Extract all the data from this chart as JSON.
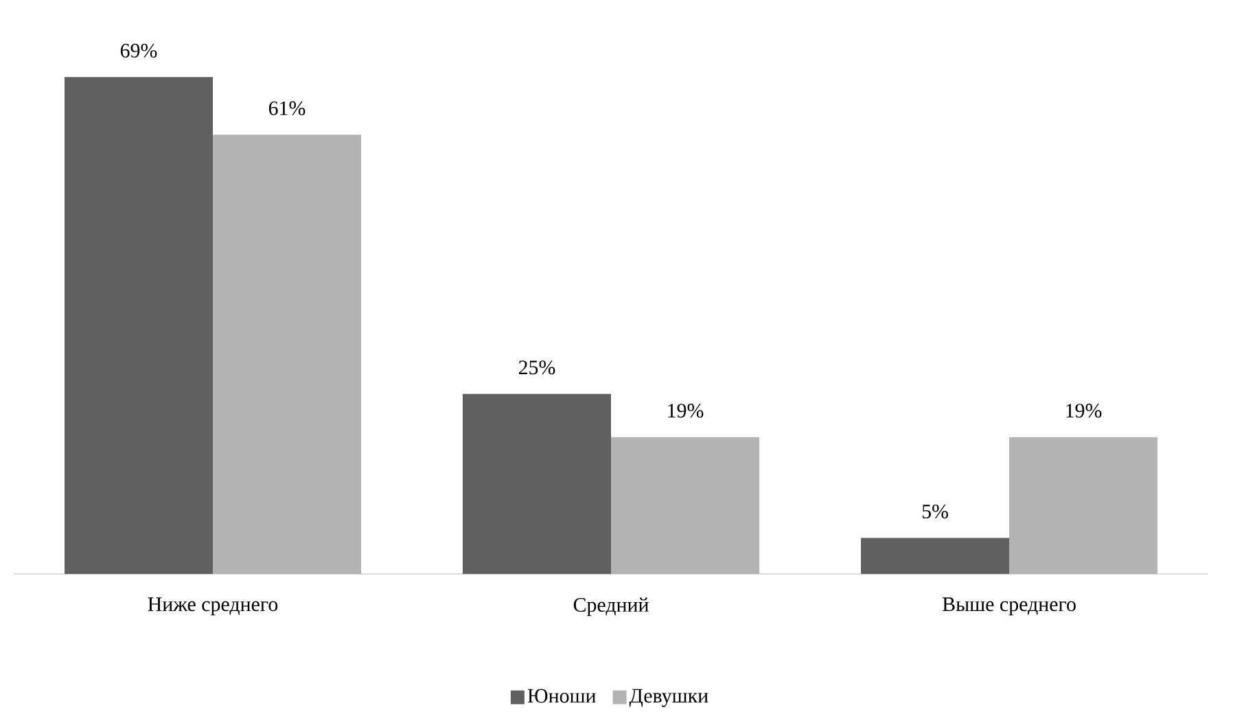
{
  "chart_data": {
    "type": "bar",
    "categories": [
      "Ниже среднего",
      "Средний",
      "Выше среднего"
    ],
    "series": [
      {
        "name": "Юноши",
        "color": "#606060",
        "values": [
          69,
          25,
          5
        ],
        "value_labels": [
          "69%",
          "25%",
          "5%"
        ]
      },
      {
        "name": "Девушки",
        "color": "#b3b3b3",
        "values": [
          61,
          19,
          19
        ],
        "value_labels": [
          "61%",
          "19%",
          "19%"
        ]
      }
    ],
    "legend": "bottom"
  }
}
